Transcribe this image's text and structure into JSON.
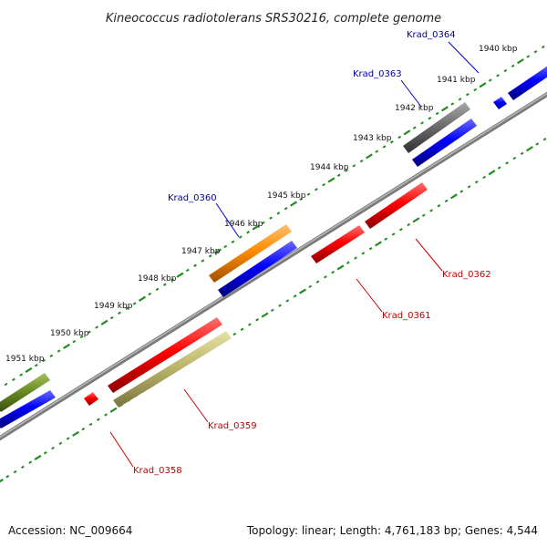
{
  "title": "Kineococcus radiotolerans SRS30216, complete genome",
  "footer": {
    "accession": "Accession: NC_009664",
    "summary": "Topology: linear; Length: 4,761,183 bp; Genes: 4,544"
  },
  "colors": {
    "backbone": "#7a7a7a",
    "tick": "#228b22",
    "forward_label": "#00009c",
    "reverse_label": "#c00000"
  },
  "position_labels": [
    "1940 kbp",
    "1941 kbp",
    "1942 kbp",
    "1943 kbp",
    "1944 kbp",
    "1945 kbp",
    "1946 kbp",
    "1947 kbp",
    "1948 kbp",
    "1949 kbp",
    "1950 kbp",
    "1951 kbp"
  ],
  "features": [
    {
      "label": "Krad_0364",
      "strand": "forward"
    },
    {
      "label": "Krad_0363",
      "strand": "forward"
    },
    {
      "label": "Krad_0360",
      "strand": "forward"
    },
    {
      "label": "Krad_0362",
      "strand": "reverse"
    },
    {
      "label": "Krad_0361",
      "strand": "reverse"
    },
    {
      "label": "Krad_0359",
      "strand": "reverse"
    },
    {
      "label": "Krad_0358",
      "strand": "reverse"
    }
  ]
}
